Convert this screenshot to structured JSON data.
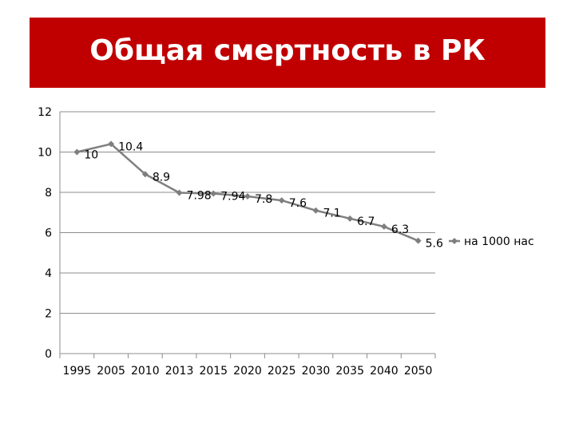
{
  "title": "Общая смертность в РК",
  "colors": {
    "banner": "#c00000",
    "line": "#7f7f7f",
    "grid": "#8c8c8c",
    "text": "#000000"
  },
  "chart_data": {
    "type": "line",
    "title": "Общая смертность в РК",
    "xlabel": "",
    "ylabel": "",
    "categories": [
      "1995",
      "2005",
      "2010",
      "2013",
      "2015",
      "2020",
      "2025",
      "2030",
      "2035",
      "2040",
      "2050"
    ],
    "series": [
      {
        "name": "на 1000 нас",
        "values": [
          10,
          10.4,
          8.9,
          7.98,
          7.94,
          7.8,
          7.6,
          7.1,
          6.7,
          6.3,
          5.6
        ],
        "labels": [
          "10",
          "10.4",
          "8.9",
          "7.98",
          "7.94",
          "7.8",
          "7.6",
          "7.1",
          "6.7",
          "6.3",
          "5.6"
        ]
      }
    ],
    "ylim": [
      0,
      12
    ],
    "yticks": [
      "0",
      "2",
      "4",
      "6",
      "8",
      "10",
      "12"
    ],
    "grid": true,
    "legend": "right",
    "marker": "diamond"
  }
}
